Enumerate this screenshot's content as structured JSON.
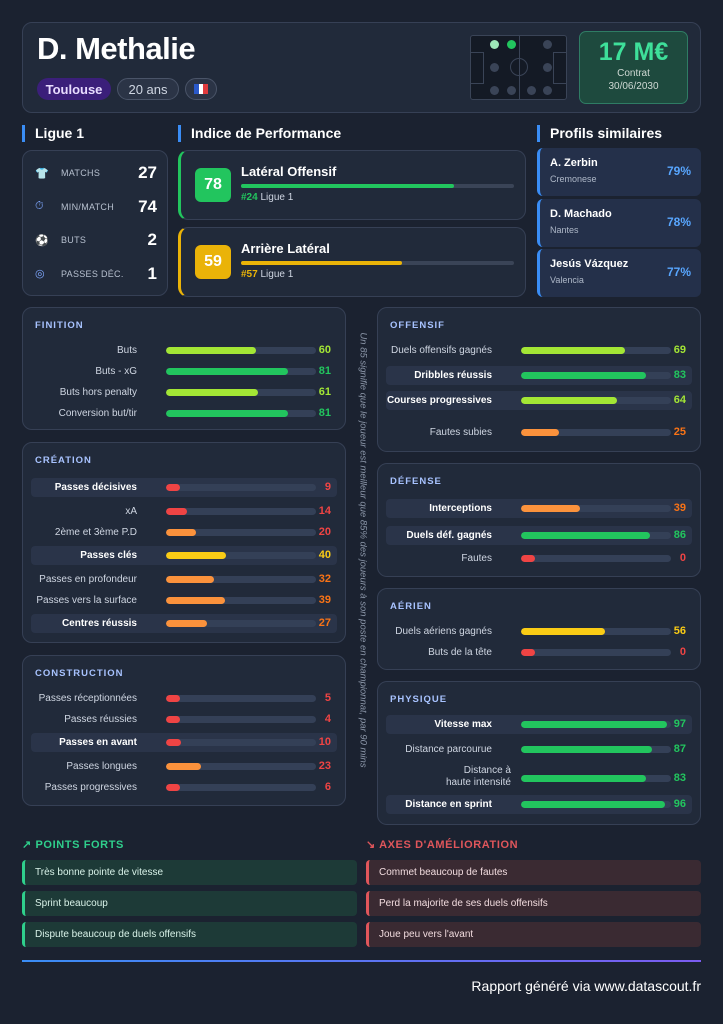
{
  "header": {
    "name": "D. Methalie",
    "club": "Toulouse",
    "age": "20 ans",
    "value": "17 M€",
    "contract_label": "Contrat",
    "contract_date": "30/06/2030",
    "flag_colors": [
      "#2a58c8",
      "#ffffff",
      "#e03a3e"
    ],
    "accent": "#3ee09a"
  },
  "league": {
    "title": "Ligue 1",
    "rows": [
      {
        "icon": "jersey-icon",
        "label": "MATCHS",
        "value": "27"
      },
      {
        "icon": "stopwatch-icon",
        "label": "MIN/MATCH",
        "value": "74"
      },
      {
        "icon": "ball-icon",
        "label": "BUTS",
        "value": "2"
      },
      {
        "icon": "target-icon",
        "label": "PASSES DÉC.",
        "value": "1"
      }
    ]
  },
  "performance": {
    "title": "Indice de Performance",
    "items": [
      {
        "score": "78",
        "role": "Latéral Offensif",
        "rank": "#24",
        "league": "Ligue 1",
        "color": "#22c55e",
        "fill": 0.78
      },
      {
        "score": "59",
        "role": "Arrière Latéral",
        "rank": "#57",
        "league": "Ligue 1",
        "color": "#eab308",
        "fill": 0.59
      }
    ]
  },
  "similar": {
    "title": "Profils similaires",
    "items": [
      {
        "name": "A. Zerbin",
        "club": "Cremonese",
        "pct": "79%"
      },
      {
        "name": "D. Machado",
        "club": "Nantes",
        "pct": "78%"
      },
      {
        "name": "Jesús Vázquez",
        "club": "Valencia",
        "pct": "77%"
      }
    ]
  },
  "sections": [
    {
      "key": "finition",
      "title": "FINITION",
      "rows": [
        {
          "label": "Buts",
          "value": "60",
          "hl": false
        },
        {
          "label": "Buts - xG",
          "value": "81",
          "hl": false
        },
        {
          "label": "Buts hors penalty",
          "value": "61",
          "hl": false
        },
        {
          "label": "Conversion but/tir",
          "value": "81",
          "hl": false
        }
      ]
    },
    {
      "key": "creation",
      "title": "CRÉATION",
      "rows": [
        {
          "label": "Passes décisives",
          "value": "9",
          "hl": true
        },
        {
          "label": "xA",
          "value": "14",
          "hl": false
        },
        {
          "label": "2ème et 3ème P.D",
          "value": "20",
          "hl": false
        },
        {
          "label": "Passes clés",
          "value": "40",
          "hl": true
        },
        {
          "label": "Passes en profondeur",
          "value": "32",
          "hl": false
        },
        {
          "label": "Passes vers la surface",
          "value": "39",
          "hl": false
        },
        {
          "label": "Centres réussis",
          "value": "27",
          "hl": true
        }
      ]
    },
    {
      "key": "construction",
      "title": "CONSTRUCTION",
      "rows": [
        {
          "label": "Passes réceptionnées",
          "value": "5",
          "hl": false
        },
        {
          "label": "Passes réussies",
          "value": "4",
          "hl": false
        },
        {
          "label": "Passes en avant",
          "value": "10",
          "hl": true
        },
        {
          "label": "Passes longues",
          "value": "23",
          "hl": false
        },
        {
          "label": "Passes progressives",
          "value": "6",
          "hl": false
        }
      ]
    },
    {
      "key": "offensif",
      "title": "OFFENSIF",
      "rows": [
        {
          "label": "Duels offensifs gagnés",
          "value": "69",
          "hl": false
        },
        {
          "label": "Dribbles réussis",
          "value": "83",
          "hl": true
        },
        {
          "label": "Courses progressives",
          "value": "64",
          "hl": true
        },
        {
          "label": "Fautes subies",
          "value": "25",
          "hl": false
        }
      ]
    },
    {
      "key": "defense",
      "title": "DÉFENSE",
      "rows": [
        {
          "label": "Interceptions",
          "value": "39",
          "hl": true
        },
        {
          "label": "Duels déf. gagnés",
          "value": "86",
          "hl": true
        },
        {
          "label": "Fautes",
          "value": "0",
          "hl": false
        }
      ]
    },
    {
      "key": "aerien",
      "title": "AÉRIEN",
      "rows": [
        {
          "label": "Duels aériens gagnés",
          "value": "56",
          "hl": false
        },
        {
          "label": "Buts de la tête",
          "value": "0",
          "hl": false
        }
      ]
    },
    {
      "key": "physique",
      "title": "PHYSIQUE",
      "rows": [
        {
          "label": "Vitesse max",
          "value": "97",
          "hl": true
        },
        {
          "label": "Distance parcourue",
          "value": "87",
          "hl": false
        },
        {
          "label": "Distance à haute intensité",
          "value": "83",
          "hl": false
        },
        {
          "label": "Distance en sprint",
          "value": "96",
          "hl": true
        }
      ]
    }
  ],
  "note": "Un 85 signifie que le joueur est meilleur que 85% des joueurs à son poste en championnat, par 90 mins",
  "strengths": {
    "title": "POINTS FORTS",
    "items": [
      "Très bonne pointe de vitesse",
      "Sprint beaucoup",
      "Dispute beaucoup de duels offensifs"
    ]
  },
  "improvements": {
    "title": "AXES D'AMÉLIORATION",
    "items": [
      "Commet beaucoup de fautes",
      "Perd la majorite de ses duels offensifs",
      "Joue peu vers l'avant"
    ]
  },
  "footer": "Rapport généré via www.datascout.fr"
}
